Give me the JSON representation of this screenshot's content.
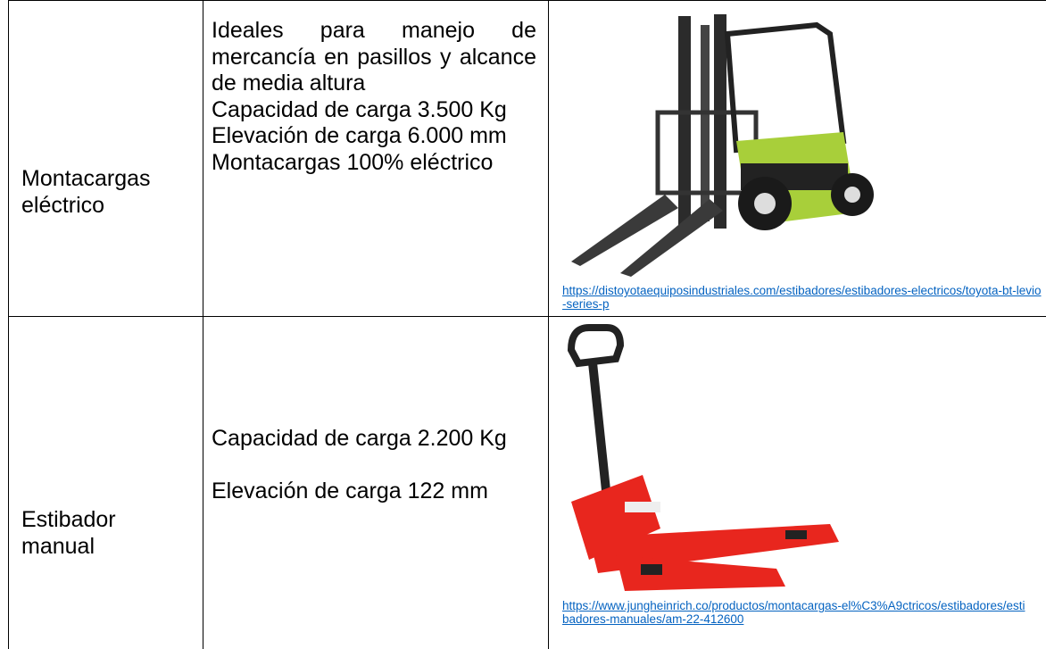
{
  "table": {
    "rows": [
      {
        "name": "Montacargas eléctrico",
        "description": [
          "Ideales para manejo de mercancía en pasillos y alcance de media altura",
          "Capacidad de carga 3.500 Kg",
          "Elevación de carga 6.000 mm",
          "Montacargas 100% eléctrico"
        ],
        "source": "https://distoyotaequiposindustriales.com/estibadores/estibadores-electricos/toyota-bt-levio-series-p"
      },
      {
        "name": "Estibador manual",
        "description": [
          "Capacidad de carga 2.200 Kg",
          "Elevación de carga 122 mm"
        ],
        "source": "https://www.jungheinrich.co/productos/montacargas-el%C3%A9ctricos/estibadores/estibadores-manuales/am-22-412600"
      }
    ]
  }
}
